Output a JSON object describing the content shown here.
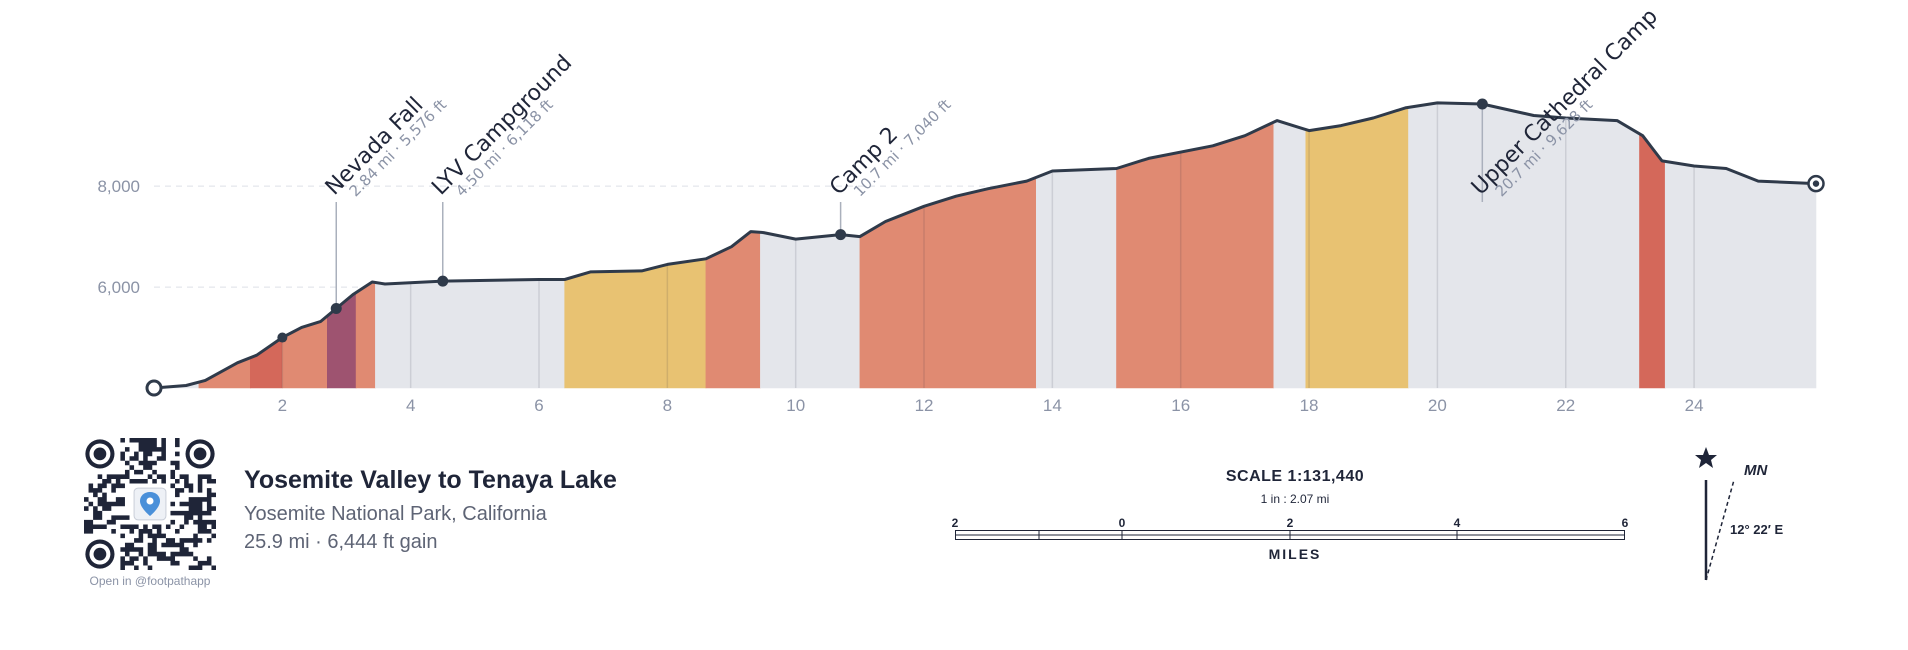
{
  "chart_data": {
    "type": "area",
    "title": "",
    "xlabel": "",
    "ylabel": "",
    "xlim": [
      0,
      25.9
    ],
    "ylim": [
      4000,
      10500
    ],
    "x_ticks": [
      2,
      4,
      6,
      8,
      10,
      12,
      14,
      16,
      18,
      20,
      22,
      24
    ],
    "x_tick_labels": [
      "2",
      "4",
      "6",
      "8",
      "10",
      "12",
      "14",
      "16",
      "18",
      "20",
      "22",
      "24"
    ],
    "y_ticks": [
      6000,
      8000
    ],
    "y_tick_labels": [
      "6,000",
      "8,000"
    ],
    "grid": "dashed horizontal at y ticks",
    "x": [
      0,
      0.5,
      0.8,
      1.3,
      1.6,
      2.0,
      2.3,
      2.6,
      2.84,
      3.1,
      3.4,
      3.6,
      4.5,
      6.0,
      6.4,
      6.8,
      7.6,
      8.0,
      8.6,
      9.0,
      9.3,
      9.5,
      10.0,
      10.7,
      11.0,
      11.4,
      12.0,
      12.5,
      13.0,
      13.6,
      14.0,
      15.0,
      15.5,
      16.5,
      17.0,
      17.5,
      18.0,
      18.5,
      19.0,
      19.5,
      20.0,
      20.7,
      21.5,
      22.0,
      22.8,
      23.2,
      23.5,
      24.0,
      24.5,
      25.0,
      25.9
    ],
    "elevation_ft": [
      4000,
      4050,
      4150,
      4500,
      4650,
      5000,
      5200,
      5320,
      5576,
      5850,
      6100,
      6060,
      6118,
      6150,
      6150,
      6300,
      6320,
      6450,
      6560,
      6800,
      7100,
      7080,
      6950,
      7040,
      7000,
      7300,
      7600,
      7800,
      7950,
      8100,
      8300,
      8350,
      8550,
      8800,
      9000,
      9300,
      9100,
      9200,
      9350,
      9550,
      9650,
      9628,
      9400,
      9350,
      9300,
      9000,
      8500,
      8400,
      8350,
      8100,
      8050
    ],
    "segments": [
      {
        "from": 0.0,
        "to": 0.7,
        "color": "#e4e6eb"
      },
      {
        "from": 0.7,
        "to": 1.5,
        "color": "#e08a72"
      },
      {
        "from": 1.5,
        "to": 2.0,
        "color": "#d4685a"
      },
      {
        "from": 2.0,
        "to": 2.7,
        "color": "#e08a72"
      },
      {
        "from": 2.7,
        "to": 3.15,
        "color": "#9e5370"
      },
      {
        "from": 3.15,
        "to": 3.45,
        "color": "#e08a72"
      },
      {
        "from": 3.45,
        "to": 6.4,
        "color": "#e4e6eb"
      },
      {
        "from": 6.4,
        "to": 8.6,
        "color": "#e8c272"
      },
      {
        "from": 8.6,
        "to": 9.45,
        "color": "#e08a72"
      },
      {
        "from": 9.45,
        "to": 11.0,
        "color": "#e4e6eb"
      },
      {
        "from": 11.0,
        "to": 13.75,
        "color": "#e08a72"
      },
      {
        "from": 13.75,
        "to": 15.0,
        "color": "#e4e6eb"
      },
      {
        "from": 15.0,
        "to": 17.45,
        "color": "#e08a72"
      },
      {
        "from": 17.45,
        "to": 17.95,
        "color": "#e4e6eb"
      },
      {
        "from": 17.95,
        "to": 19.55,
        "color": "#e8c272"
      },
      {
        "from": 19.55,
        "to": 23.15,
        "color": "#e4e6eb"
      },
      {
        "from": 23.15,
        "to": 23.55,
        "color": "#d4685a"
      },
      {
        "from": 23.55,
        "to": 25.9,
        "color": "#e4e6eb"
      }
    ],
    "waypoints": [
      {
        "name": "Nevada Fall",
        "detail": "2.84 mi · 5,576 ft",
        "x": 2.84,
        "y": 5576
      },
      {
        "name": "LYV Campground",
        "detail": "4.50 mi · 6,118 ft",
        "x": 4.5,
        "y": 6118
      },
      {
        "name": "Camp 2",
        "detail": "10.7 mi · 7,040 ft",
        "x": 10.7,
        "y": 7040
      },
      {
        "name": "Upper Cathedral Camp",
        "detail": "20.7 mi · 9,628 ft",
        "x": 20.7,
        "y": 9628
      }
    ],
    "unlabeled_points": [
      {
        "x": 2.0,
        "y": 5000
      }
    ],
    "start": {
      "x": 0,
      "y": 4000
    },
    "end": {
      "x": 25.9,
      "y": 8050
    }
  },
  "trail": {
    "title": "Yosemite Valley to Tenaya Lake",
    "location": "Yosemite National Park, California",
    "stats": "25.9 mi · 6,444 ft gain"
  },
  "qr": {
    "caption": "Open in @footpathapp"
  },
  "scale": {
    "title": "SCALE 1:131,440",
    "ratio": "1 in : 2.07 mi",
    "labels": [
      "2",
      "0",
      "2",
      "4",
      "6"
    ],
    "units": "MILES"
  },
  "north": {
    "mn_label": "MN",
    "declination": "12° 22′ E"
  },
  "colors": {
    "line": "#2f3a4a",
    "flat": "#e4e6eb",
    "moderate": "#e8c272",
    "steep": "#e08a72",
    "very_steep": "#d4685a",
    "extreme": "#9e5370"
  }
}
